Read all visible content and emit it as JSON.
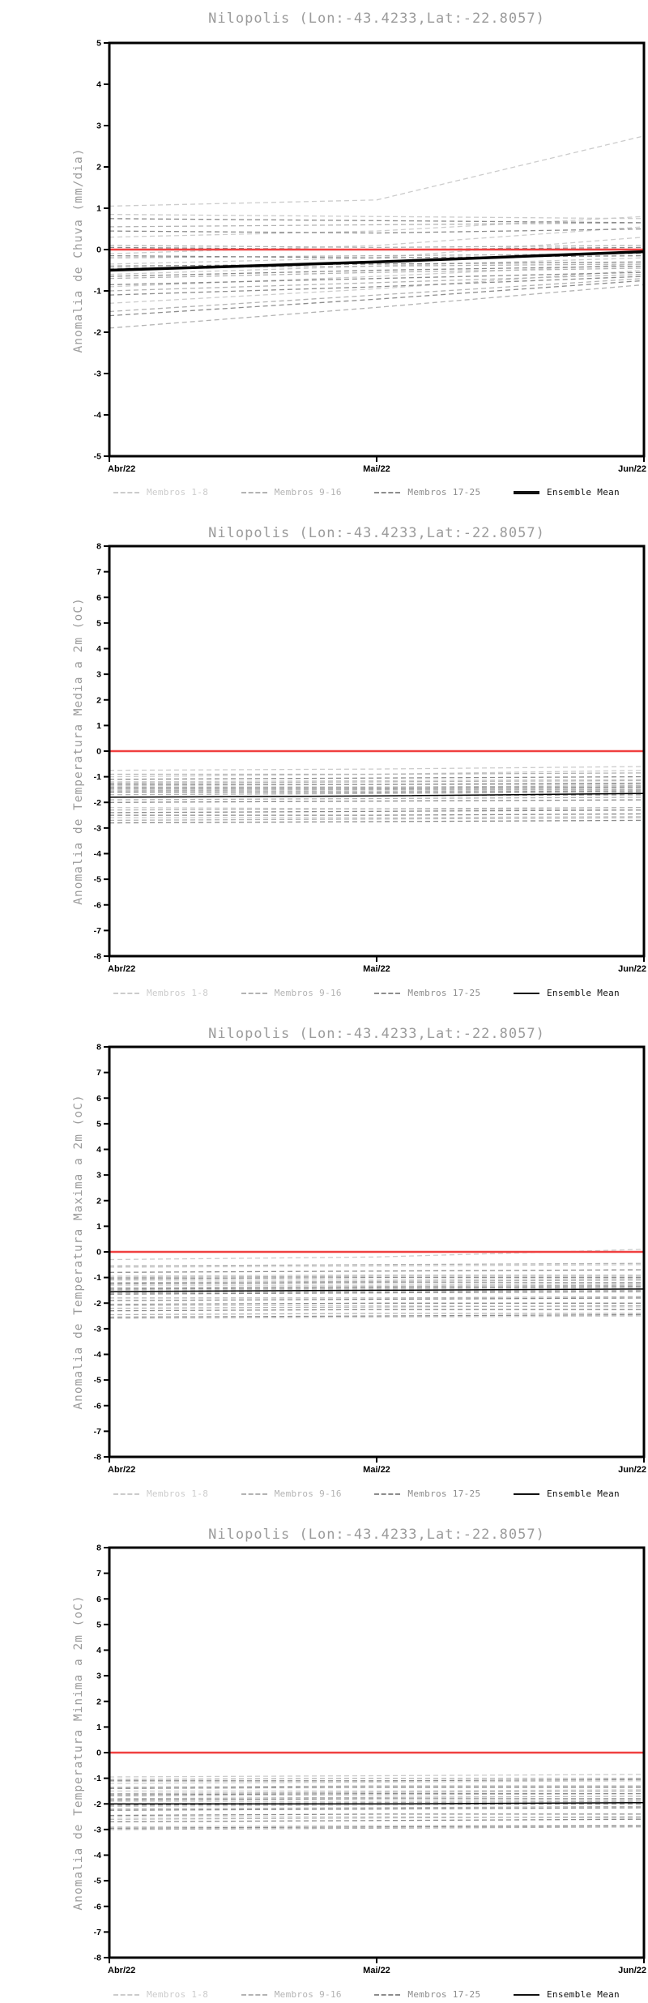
{
  "station": {
    "name": "Nilopolis",
    "lon": "-43.4233",
    "lat": "-22.8057"
  },
  "legend": {
    "position": "bottom",
    "items": [
      {
        "label": "Membros 1-8",
        "color": "#cccccc",
        "style": "dashed"
      },
      {
        "label": "Membros 9-16",
        "color": "#b3b3b3",
        "style": "dashed"
      },
      {
        "label": "Membros 17-25",
        "color": "#8c8c8c",
        "style": "dashed"
      },
      {
        "label": "Ensemble Mean",
        "color": "#111111",
        "style": "solid"
      }
    ]
  },
  "chart_data": [
    {
      "type": "line",
      "title": "Nilopolis (Lon:-43.4233,Lat:-22.8057)",
      "ylabel": "Anomalia de Chuva (mm/dia)",
      "xlabel": "",
      "categories": [
        "Abr/22",
        "Mai/22",
        "Jun/22"
      ],
      "ylim": [
        -5,
        5
      ],
      "ytick_step": 1,
      "grid": false,
      "zero_line_color": "#f04040",
      "member_groups": [
        {
          "name": "Membros 1-8",
          "color": "#cccccc",
          "values": [
            [
              1.05,
              1.2,
              2.75
            ],
            [
              0.85,
              0.8,
              0.75
            ],
            [
              0.3,
              0.45,
              0.8
            ],
            [
              -0.1,
              0.1,
              0.55
            ],
            [
              -0.35,
              -0.2,
              0.3
            ],
            [
              -0.6,
              -0.4,
              -0.2
            ],
            [
              -0.9,
              -0.65,
              -0.35
            ],
            [
              -1.3,
              -0.95,
              -0.5
            ]
          ]
        },
        {
          "name": "Membros 9-16",
          "color": "#b3b3b3",
          "values": [
            [
              0.55,
              0.6,
              0.65
            ],
            [
              0.1,
              0.05,
              0.1
            ],
            [
              -0.2,
              -0.15,
              -0.1
            ],
            [
              -0.45,
              -0.4,
              -0.35
            ],
            [
              -0.7,
              -0.55,
              -0.45
            ],
            [
              -1.0,
              -0.8,
              -0.6
            ],
            [
              -1.5,
              -1.1,
              -0.7
            ],
            [
              -1.9,
              -1.4,
              -0.85
            ]
          ]
        },
        {
          "name": "Membros 17-25",
          "color": "#8c8c8c",
          "values": [
            [
              0.75,
              0.7,
              0.65
            ],
            [
              0.45,
              0.4,
              0.5
            ],
            [
              0.05,
              0.0,
              0.05
            ],
            [
              -0.15,
              -0.2,
              -0.15
            ],
            [
              -0.4,
              -0.35,
              -0.3
            ],
            [
              -0.65,
              -0.5,
              -0.4
            ],
            [
              -0.85,
              -0.7,
              -0.55
            ],
            [
              -1.1,
              -0.9,
              -0.65
            ],
            [
              -1.6,
              -1.2,
              -0.75
            ]
          ]
        }
      ],
      "mean": {
        "name": "Ensemble Mean",
        "color": "#000000",
        "width": 3.5,
        "values": [
          -0.5,
          -0.3,
          -0.05
        ]
      }
    },
    {
      "type": "line",
      "title": "Nilopolis (Lon:-43.4233,Lat:-22.8057)",
      "ylabel": "Anomalia de Temperatura Media a 2m (oC)",
      "xlabel": "",
      "categories": [
        "Abr/22",
        "Mai/22",
        "Jun/22"
      ],
      "ylim": [
        -8,
        8
      ],
      "ytick_step": 1,
      "grid": false,
      "zero_line_color": "#f04040",
      "member_groups": [
        {
          "name": "Membros 1-8",
          "color": "#cccccc",
          "values": [
            [
              -0.75,
              -0.7,
              -0.6
            ],
            [
              -1.0,
              -0.9,
              -0.75
            ],
            [
              -1.2,
              -1.15,
              -1.1
            ],
            [
              -1.35,
              -1.3,
              -1.3
            ],
            [
              -1.5,
              -1.5,
              -1.45
            ],
            [
              -1.6,
              -1.55,
              -1.5
            ],
            [
              -2.2,
              -2.25,
              -2.3
            ],
            [
              -2.6,
              -2.6,
              -2.55
            ]
          ]
        },
        {
          "name": "Membros 9-16",
          "color": "#b3b3b3",
          "values": [
            [
              -0.9,
              -0.9,
              -0.85
            ],
            [
              -1.25,
              -1.2,
              -1.15
            ],
            [
              -1.4,
              -1.4,
              -1.35
            ],
            [
              -1.55,
              -1.5,
              -1.5
            ],
            [
              -1.7,
              -1.65,
              -1.6
            ],
            [
              -1.9,
              -1.85,
              -1.8
            ],
            [
              -2.3,
              -2.25,
              -2.2
            ],
            [
              -2.7,
              -2.65,
              -2.6
            ]
          ]
        },
        {
          "name": "Membros 17-25",
          "color": "#8c8c8c",
          "values": [
            [
              -1.1,
              -1.05,
              -1.0
            ],
            [
              -1.3,
              -1.3,
              -1.25
            ],
            [
              -1.45,
              -1.45,
              -1.4
            ],
            [
              -1.6,
              -1.6,
              -1.55
            ],
            [
              -1.8,
              -1.75,
              -1.7
            ],
            [
              -2.0,
              -1.95,
              -1.9
            ],
            [
              -2.4,
              -2.35,
              -2.3
            ],
            [
              -2.5,
              -2.5,
              -2.45
            ],
            [
              -2.8,
              -2.75,
              -2.7
            ]
          ]
        }
      ],
      "mean": {
        "name": "Ensemble Mean",
        "color": "#000000",
        "width": 1.5,
        "values": [
          -1.8,
          -1.75,
          -1.65
        ]
      }
    },
    {
      "type": "line",
      "title": "Nilopolis (Lon:-43.4233,Lat:-22.8057)",
      "ylabel": "Anomalia de Temperatura Maxima a 2m (oC)",
      "xlabel": "",
      "categories": [
        "Abr/22",
        "Mai/22",
        "Jun/22"
      ],
      "ylim": [
        -8,
        8
      ],
      "ytick_step": 1,
      "grid": false,
      "zero_line_color": "#f04040",
      "member_groups": [
        {
          "name": "Membros 1-8",
          "color": "#cccccc",
          "values": [
            [
              -0.3,
              -0.2,
              0.1
            ],
            [
              -0.6,
              -0.55,
              -0.5
            ],
            [
              -0.95,
              -0.9,
              -0.9
            ],
            [
              -1.1,
              -1.1,
              -1.05
            ],
            [
              -1.3,
              -1.3,
              -1.25
            ],
            [
              -1.5,
              -1.45,
              -1.4
            ],
            [
              -2.1,
              -2.1,
              -2.15
            ],
            [
              -2.6,
              -2.55,
              -2.5
            ]
          ]
        },
        {
          "name": "Membros 9-16",
          "color": "#b3b3b3",
          "values": [
            [
              -0.55,
              -0.5,
              -0.45
            ],
            [
              -1.0,
              -0.95,
              -0.95
            ],
            [
              -1.2,
              -1.15,
              -1.1
            ],
            [
              -1.4,
              -1.35,
              -1.3
            ],
            [
              -1.6,
              -1.55,
              -1.5
            ],
            [
              -1.8,
              -1.8,
              -1.75
            ],
            [
              -2.2,
              -2.15,
              -2.1
            ],
            [
              -2.45,
              -2.4,
              -2.4
            ]
          ]
        },
        {
          "name": "Membros 17-25",
          "color": "#8c8c8c",
          "values": [
            [
              -0.8,
              -0.75,
              -0.7
            ],
            [
              -1.05,
              -1.0,
              -1.0
            ],
            [
              -1.25,
              -1.2,
              -1.2
            ],
            [
              -1.45,
              -1.4,
              -1.35
            ],
            [
              -1.65,
              -1.6,
              -1.55
            ],
            [
              -1.9,
              -1.85,
              -1.8
            ],
            [
              -2.05,
              -2.0,
              -2.0
            ],
            [
              -2.3,
              -2.25,
              -2.25
            ],
            [
              -2.55,
              -2.5,
              -2.45
            ]
          ]
        }
      ],
      "mean": {
        "name": "Ensemble Mean",
        "color": "#000000",
        "width": 1.5,
        "values": [
          -1.55,
          -1.5,
          -1.45
        ]
      }
    },
    {
      "type": "line",
      "title": "Nilopolis (Lon:-43.4233,Lat:-22.8057)",
      "ylabel": "Anomalia de Temperatura Minima a 2m (oC)",
      "xlabel": "",
      "categories": [
        "Abr/22",
        "Mai/22",
        "Jun/22"
      ],
      "ylim": [
        -8,
        8
      ],
      "ytick_step": 1,
      "grid": false,
      "zero_line_color": "#f04040",
      "member_groups": [
        {
          "name": "Membros 1-8",
          "color": "#cccccc",
          "values": [
            [
              -0.95,
              -0.9,
              -0.85
            ],
            [
              -1.2,
              -1.15,
              -1.1
            ],
            [
              -1.5,
              -1.5,
              -1.45
            ],
            [
              -1.7,
              -1.65,
              -1.6
            ],
            [
              -1.9,
              -1.9,
              -1.85
            ],
            [
              -2.1,
              -2.05,
              -2.0
            ],
            [
              -2.5,
              -2.5,
              -2.55
            ],
            [
              -2.9,
              -2.85,
              -2.85
            ]
          ]
        },
        {
          "name": "Membros 9-16",
          "color": "#b3b3b3",
          "values": [
            [
              -1.05,
              -1.0,
              -1.0
            ],
            [
              -1.35,
              -1.3,
              -1.3
            ],
            [
              -1.6,
              -1.55,
              -1.5
            ],
            [
              -1.8,
              -1.75,
              -1.7
            ],
            [
              -2.0,
              -1.95,
              -1.9
            ],
            [
              -2.2,
              -2.15,
              -2.1
            ],
            [
              -2.6,
              -2.55,
              -2.5
            ],
            [
              -3.0,
              -2.95,
              -2.9
            ]
          ]
        },
        {
          "name": "Membros 17-25",
          "color": "#8c8c8c",
          "values": [
            [
              -1.1,
              -1.1,
              -1.05
            ],
            [
              -1.4,
              -1.35,
              -1.35
            ],
            [
              -1.65,
              -1.6,
              -1.6
            ],
            [
              -1.85,
              -1.8,
              -1.8
            ],
            [
              -2.05,
              -2.0,
              -2.0
            ],
            [
              -2.25,
              -2.2,
              -2.15
            ],
            [
              -2.45,
              -2.4,
              -2.4
            ],
            [
              -2.7,
              -2.65,
              -2.6
            ],
            [
              -2.95,
              -2.9,
              -2.85
            ]
          ]
        }
      ],
      "mean": {
        "name": "Ensemble Mean",
        "color": "#000000",
        "width": 1.5,
        "values": [
          -2.0,
          -2.0,
          -1.95
        ]
      }
    }
  ]
}
